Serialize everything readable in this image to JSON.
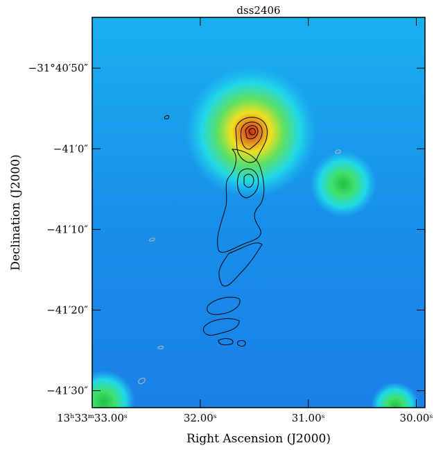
{
  "chart_data": {
    "type": "image",
    "title": "dss2406",
    "x_label": "Right Ascension (J2000)",
    "y_label": "Declination (J2000)",
    "xlim": [
      33.0,
      29.92
    ],
    "ylim": [
      -114092.1,
      -114043.7
    ],
    "xticks": [
      {
        "value": 33.0,
        "label": "13ʰ33ᵐ33.00ˢ"
      },
      {
        "value": 32.0,
        "label": "32.00ˢ"
      },
      {
        "value": 31.0,
        "label": "31.00ˢ"
      },
      {
        "value": 30.0,
        "label": "30.00ˢ"
      }
    ],
    "yticks": [
      {
        "value": -114050,
        "label": "−31°40′50″"
      },
      {
        "value": -114060,
        "label": "−41′0″"
      },
      {
        "value": -114070,
        "label": "−41′10″"
      },
      {
        "value": -114080,
        "label": "−41′20″"
      },
      {
        "value": -114090,
        "label": "−41′30″"
      }
    ]
  }
}
